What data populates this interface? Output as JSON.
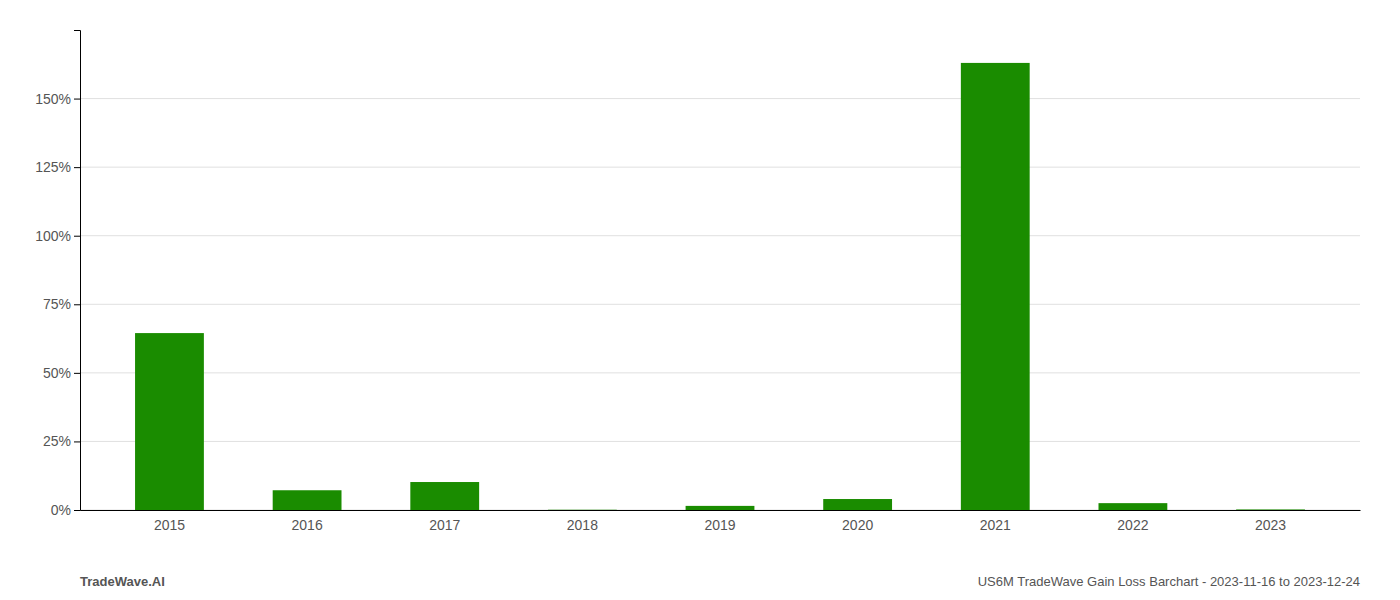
{
  "chart_data": {
    "type": "bar",
    "categories": [
      "2015",
      "2016",
      "2017",
      "2018",
      "2019",
      "2020",
      "2021",
      "2022",
      "2023"
    ],
    "values": [
      0.645,
      0.072,
      0.102,
      0.001,
      0.015,
      0.04,
      1.63,
      0.025,
      0.002
    ],
    "color": "#1a8c00",
    "ylim": [
      0,
      1.75
    ],
    "yticks": [
      {
        "value": 0.0,
        "label": "0%"
      },
      {
        "value": 0.25,
        "label": "25%"
      },
      {
        "value": 0.5,
        "label": "50%"
      },
      {
        "value": 0.75,
        "label": "75%"
      },
      {
        "value": 1.0,
        "label": "100%"
      },
      {
        "value": 1.25,
        "label": "125%"
      },
      {
        "value": 1.5,
        "label": "150%"
      }
    ],
    "grid": true,
    "annotations": [
      "TradeWave.AI",
      "US6M TradeWave Gain Loss Barchart - 2023-11-16 to 2023-12-24"
    ]
  }
}
